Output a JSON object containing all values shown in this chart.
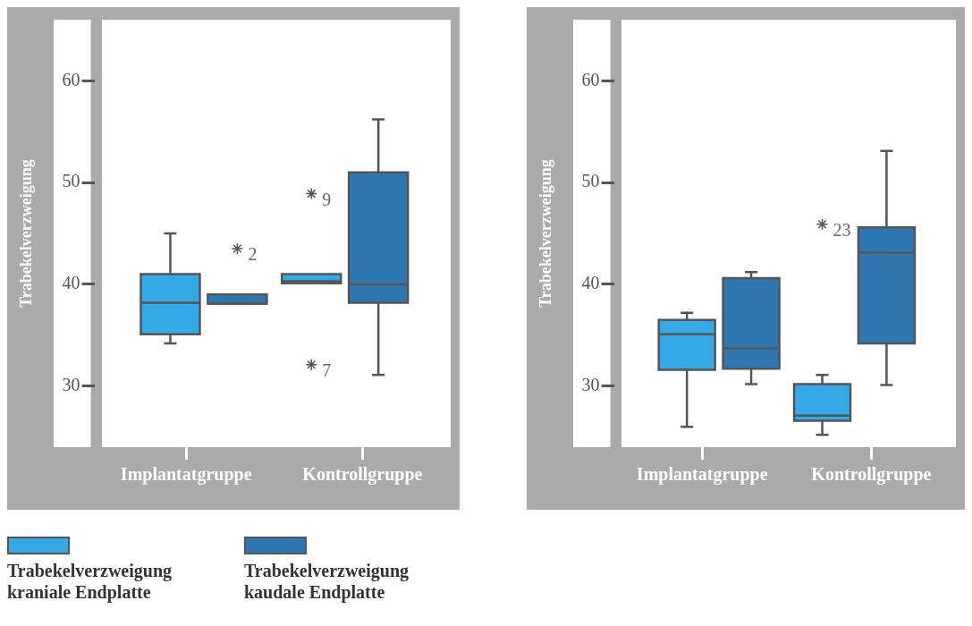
{
  "chart_data": [
    {
      "type": "box",
      "ylabel": "Trabekelverzweigung",
      "categories": [
        "Implantatgruppe",
        "Kontrollgruppe"
      ],
      "ylim": [
        24,
        66
      ],
      "yticks": [
        30,
        40,
        50,
        60
      ],
      "grid": false,
      "legend": "bottom",
      "marker": "star",
      "series": [
        {
          "name": "Trabekelverzweigung kraniale Endplatte",
          "color": "#35a8e8",
          "boxes": [
            {
              "low": 34.2,
              "q1": 35.1,
              "median": 38.2,
              "q3": 41.0,
              "high": 45.0
            },
            {
              "low": 40.1,
              "q1": 40.1,
              "median": 40.3,
              "q3": 41.0,
              "high": 41.0,
              "outliers": [
                48.9,
                32.1
              ]
            }
          ]
        },
        {
          "name": "Trabekelverzweigung kaudale Endplatte",
          "color": "#2f77b0",
          "boxes": [
            {
              "low": 38.1,
              "q1": 38.1,
              "median": 38.1,
              "q3": 39.0,
              "high": 39.0,
              "outliers": [
                43.5
              ]
            },
            {
              "low": 31.1,
              "q1": 38.2,
              "median": 40.0,
              "q3": 51.0,
              "high": 56.2
            }
          ]
        }
      ],
      "annotations": [
        "9",
        "7",
        "2"
      ]
    },
    {
      "type": "box",
      "ylabel": "Trabekelverzweigung",
      "categories": [
        "Implantatgruppe",
        "Kontrollgruppe"
      ],
      "ylim": [
        24,
        66
      ],
      "yticks": [
        30,
        40,
        50,
        60
      ],
      "grid": false,
      "marker": "star",
      "series": [
        {
          "color": "#35a8e8",
          "boxes": [
            {
              "low": 26.0,
              "q1": 31.6,
              "median": 35.1,
              "q3": 36.5,
              "high": 37.2
            },
            {
              "low": 25.2,
              "q1": 26.6,
              "median": 27.1,
              "q3": 30.2,
              "high": 31.1,
              "outliers": [
                45.9
              ]
            }
          ]
        },
        {
          "color": "#2f77b0",
          "boxes": [
            {
              "low": 30.2,
              "q1": 31.7,
              "median": 33.7,
              "q3": 40.6,
              "high": 41.2
            },
            {
              "low": 30.1,
              "q1": 34.2,
              "median": 43.1,
              "q3": 45.6,
              "high": 53.1
            }
          ]
        }
      ],
      "annotations": [
        "23"
      ]
    }
  ]
}
